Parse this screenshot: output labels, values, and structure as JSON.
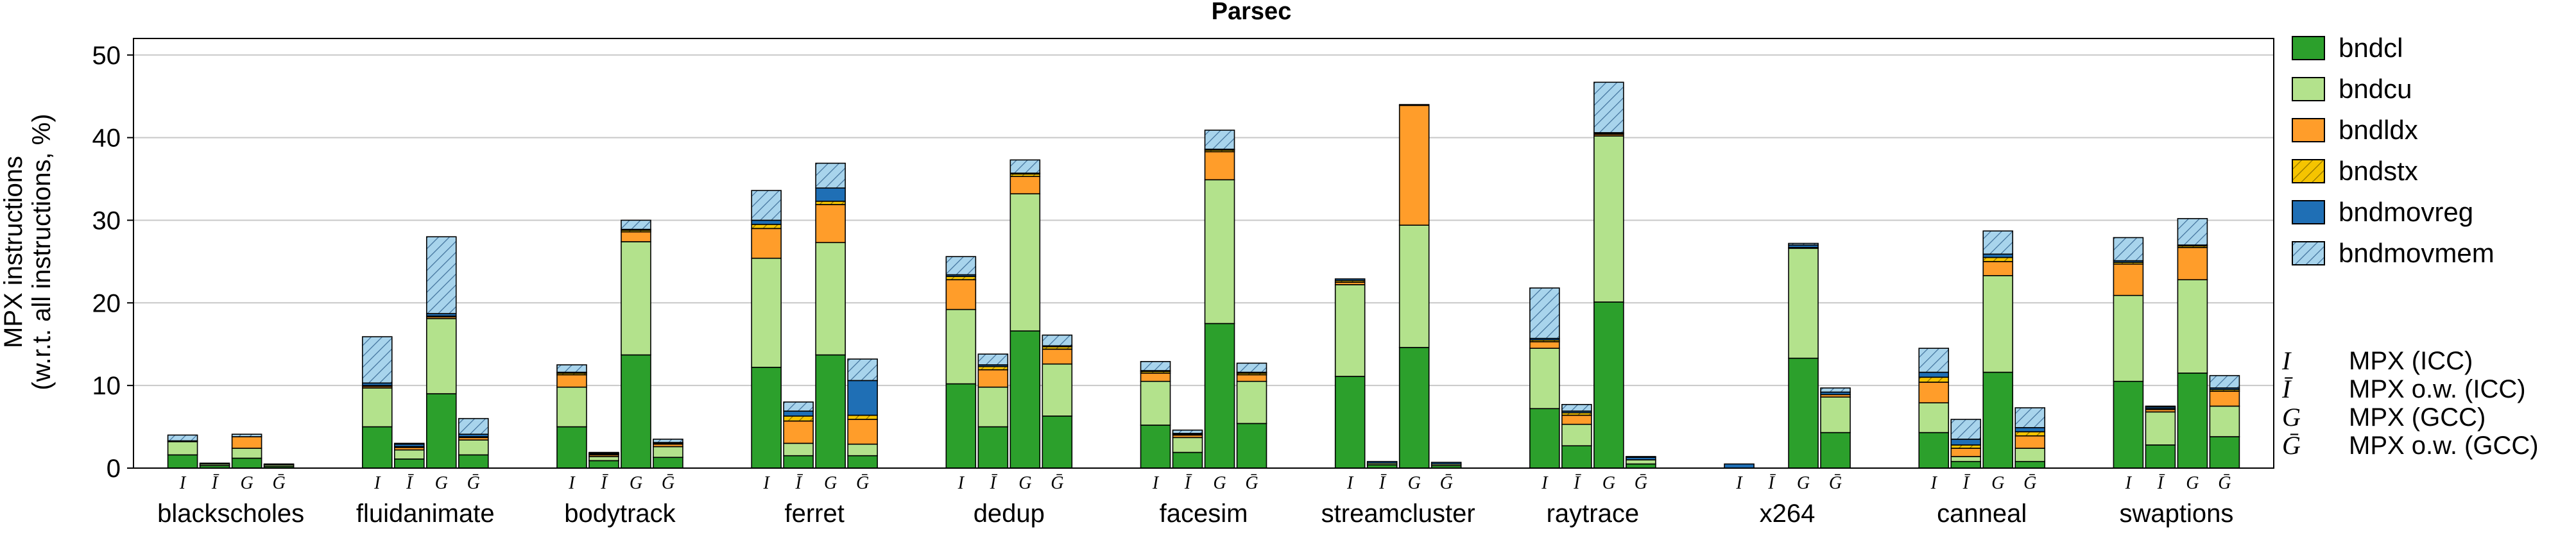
{
  "chart_data": {
    "type": "bar",
    "stacked": true,
    "title": "Parsec",
    "ylabel": [
      "MPX instructions",
      "(w.r.t. all instructions, %)"
    ],
    "ylim": [
      0,
      52
    ],
    "yticks": [
      0,
      10,
      20,
      30,
      40,
      50
    ],
    "grid": "horizontal",
    "legend_position": "right",
    "bar_labels": [
      "I",
      "Ī",
      "G",
      "Ḡ"
    ],
    "categories": [
      "blackscholes",
      "fluidanimate",
      "bodytrack",
      "ferret",
      "dedup",
      "facesim",
      "streamcluster",
      "raytrace",
      "x264",
      "canneal",
      "swaptions"
    ],
    "series": [
      {
        "name": "bndcl",
        "color": "#2ca02c",
        "pattern": "solid",
        "values": [
          [
            1.6,
            0.3,
            1.2,
            0.2
          ],
          [
            5.0,
            1.1,
            9.0,
            1.6
          ],
          [
            5.0,
            0.9,
            13.7,
            1.3
          ],
          [
            12.2,
            1.5,
            13.7,
            1.5
          ],
          [
            10.2,
            5.0,
            16.6,
            6.3
          ],
          [
            5.2,
            1.9,
            17.5,
            5.4
          ],
          [
            11.1,
            0.4,
            14.6,
            0.3
          ],
          [
            7.2,
            2.7,
            20.1,
            0.5
          ],
          [
            0,
            0,
            13.3,
            4.3
          ],
          [
            4.3,
            0.8,
            11.6,
            0.8
          ],
          [
            10.5,
            2.8,
            11.5,
            3.8
          ]
        ]
      },
      {
        "name": "bndcu",
        "color": "#b3e28c",
        "pattern": "solid",
        "values": [
          [
            1.6,
            0.2,
            1.2,
            0.2
          ],
          [
            4.7,
            1.1,
            9.1,
            1.8
          ],
          [
            4.8,
            0.5,
            13.7,
            1.3
          ],
          [
            13.2,
            1.5,
            13.6,
            1.4
          ],
          [
            9.0,
            4.8,
            16.6,
            6.3
          ],
          [
            5.3,
            1.8,
            17.4,
            5.1
          ],
          [
            11.1,
            0.2,
            14.8,
            0.2
          ],
          [
            7.3,
            2.6,
            20.1,
            0.5
          ],
          [
            0,
            0,
            13.3,
            4.3
          ],
          [
            3.6,
            0.6,
            11.7,
            1.6
          ],
          [
            10.4,
            4.0,
            11.3,
            3.7
          ]
        ]
      },
      {
        "name": "bndldx",
        "color": "#ff9d2a",
        "pattern": "solid",
        "values": [
          [
            0.1,
            0.1,
            1.4,
            0.1
          ],
          [
            0.2,
            0.3,
            0.2,
            0.3
          ],
          [
            1.5,
            0.2,
            1.2,
            0.3
          ],
          [
            3.6,
            2.7,
            4.6,
            3.0
          ],
          [
            3.6,
            2.1,
            2.1,
            1.8
          ],
          [
            1.0,
            0.3,
            3.4,
            0.8
          ],
          [
            0.3,
            0,
            14.5,
            0
          ],
          [
            0.8,
            1.1,
            0.2,
            0
          ],
          [
            0,
            0,
            0.1,
            0.3
          ],
          [
            2.5,
            1.0,
            1.7,
            1.5
          ],
          [
            3.8,
            0.3,
            3.9,
            1.8
          ]
        ]
      },
      {
        "name": "bndstx",
        "color": "#f5c400",
        "pattern": "hatch",
        "values": [
          [
            0,
            0,
            0,
            0
          ],
          [
            0.1,
            0.1,
            0.1,
            0.1
          ],
          [
            0.2,
            0.1,
            0.2,
            0.1
          ],
          [
            0.5,
            0.6,
            0.4,
            0.5
          ],
          [
            0.4,
            0.4,
            0.3,
            0.3
          ],
          [
            0.2,
            0.1,
            0.2,
            0.2
          ],
          [
            0.2,
            0,
            0.1,
            0
          ],
          [
            0.2,
            0.3,
            0.1,
            0
          ],
          [
            0,
            0,
            0,
            0
          ],
          [
            0.6,
            0.4,
            0.5,
            0.5
          ],
          [
            0.2,
            0.1,
            0.2,
            0.2
          ]
        ]
      },
      {
        "name": "bndmovreg",
        "color": "#1f6fb5",
        "pattern": "solid",
        "values": [
          [
            0,
            0,
            0,
            0
          ],
          [
            0.3,
            0.3,
            0.3,
            0.3
          ],
          [
            0.1,
            0.1,
            0.1,
            0.1
          ],
          [
            0.5,
            0.6,
            1.6,
            4.2
          ],
          [
            0.2,
            0.2,
            0.1,
            0.1
          ],
          [
            0.1,
            0.1,
            0.1,
            0.1
          ],
          [
            0.2,
            0.2,
            0,
            0.2
          ],
          [
            0.2,
            0.2,
            0.1,
            0.3
          ],
          [
            0.5,
            0,
            0.3,
            0.3
          ],
          [
            0.6,
            0.7,
            0.4,
            0.5
          ],
          [
            0.2,
            0.2,
            0.1,
            0.2
          ]
        ]
      },
      {
        "name": "bndmovmem",
        "color": "#a8d4ec",
        "pattern": "hatch",
        "values": [
          [
            0.7,
            0,
            0.3,
            0
          ],
          [
            5.6,
            0.1,
            9.3,
            1.9
          ],
          [
            0.9,
            0.1,
            1.1,
            0.4
          ],
          [
            3.6,
            1.1,
            3.0,
            2.6
          ],
          [
            2.2,
            1.3,
            1.6,
            1.3
          ],
          [
            1.1,
            0.4,
            2.3,
            1.1
          ],
          [
            0,
            0,
            0,
            0
          ],
          [
            6.1,
            0.8,
            6.1,
            0.1
          ],
          [
            0,
            0,
            0.2,
            0.5
          ],
          [
            2.9,
            2.4,
            2.8,
            2.4
          ],
          [
            2.8,
            0.1,
            3.2,
            1.5
          ]
        ]
      }
    ],
    "footnote_legend": [
      {
        "symbol": "I",
        "label": "MPX (ICC)"
      },
      {
        "symbol": "Ī",
        "label": "MPX o.w. (ICC)"
      },
      {
        "symbol": "G",
        "label": "MPX (GCC)"
      },
      {
        "symbol": "Ḡ",
        "label": "MPX o.w. (GCC)"
      }
    ]
  }
}
